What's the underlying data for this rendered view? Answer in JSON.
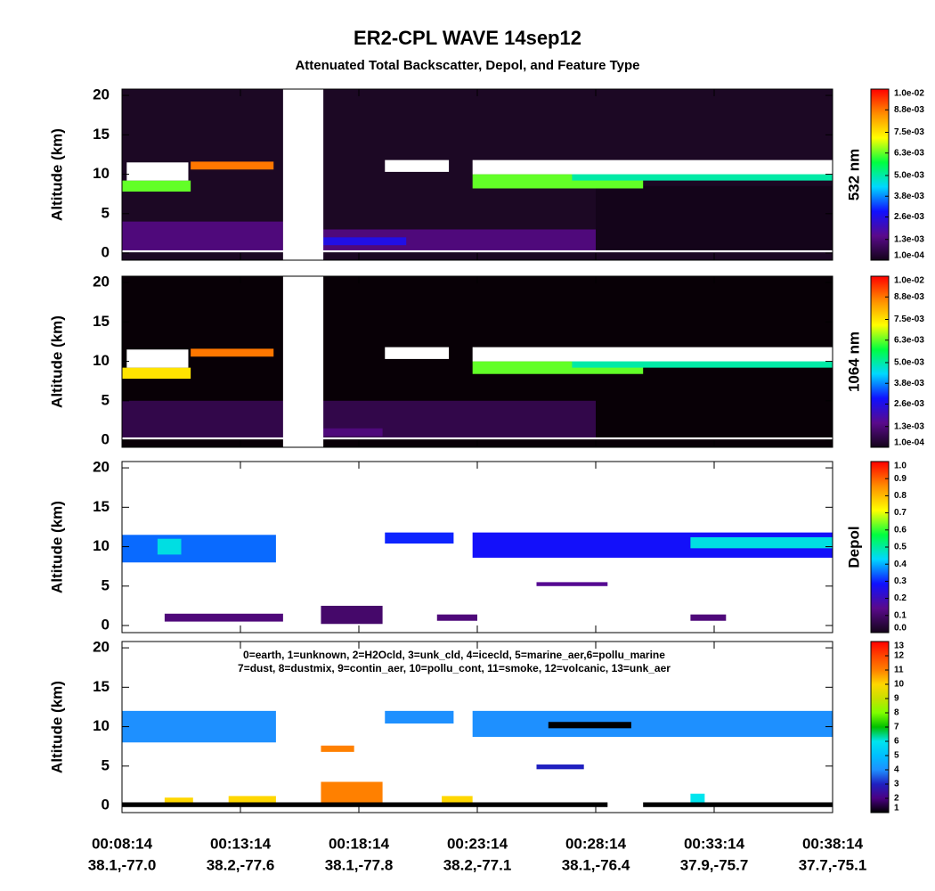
{
  "chart_data": {
    "type": "heatmap",
    "title": "ER2-CPL WAVE 14sep12",
    "subtitle": "Attenuated Total Backscatter, Depol, and Feature Type",
    "xlim": [
      0,
      30
    ],
    "xticks": [
      {
        "value": 0,
        "label": "00:08:14"
      },
      {
        "value": 5,
        "label": "00:13:14"
      },
      {
        "value": 10,
        "label": "00:18:14"
      },
      {
        "value": 15,
        "label": "00:23:14"
      },
      {
        "value": 20,
        "label": "00:28:14"
      },
      {
        "value": 25,
        "label": "00:33:14"
      },
      {
        "value": 30,
        "label": "00:38:14"
      }
    ],
    "xtick_locations": [
      "38.1,-77.0",
      "38.2,-77.6",
      "38.1,-77.8",
      "38.2,-77.1",
      "38.1,-76.4",
      "37.9,-75.7",
      "37.7,-75.1"
    ],
    "ylabel": "Altitude (km)",
    "ylim": [
      -0.9,
      20.8
    ],
    "yticks": [
      0,
      5,
      10,
      15,
      20
    ],
    "panels": [
      {
        "colorbar_label": "532 nm",
        "background": "#1c0824",
        "gap": [
          6.8,
          8.5
        ],
        "clim": [
          0.0001,
          0.01
        ],
        "cticks": [
          {
            "value": 0.0001,
            "label": "1.0e-04"
          },
          {
            "value": 0.0013,
            "label": "1.3e-03"
          },
          {
            "value": 0.0026,
            "label": "2.6e-03"
          },
          {
            "value": 0.0038,
            "label": "3.8e-03"
          },
          {
            "value": 0.005,
            "label": "5.0e-03"
          },
          {
            "value": 0.0063,
            "label": "6.3e-03"
          },
          {
            "value": 0.0075,
            "label": "7.5e-03"
          },
          {
            "value": 0.0088,
            "label": "8.8e-03"
          },
          {
            "value": 0.01,
            "label": "1.0e-02"
          }
        ],
        "colors": [
          "#14041a",
          "#5a0a8c",
          "#1010ff",
          "#00d8ff",
          "#00ff40",
          "#ffff00",
          "#ff8c00",
          "#ff0000"
        ],
        "over_color": "#ffffff",
        "under_color": "#000000",
        "features": [
          {
            "x0": 0,
            "x1": 6.8,
            "bottom": 0.3,
            "top": 4,
            "value": 0.0013
          },
          {
            "x0": 8.5,
            "x1": 20,
            "bottom": 0.3,
            "top": 3,
            "value": 0.0013
          },
          {
            "x0": 8.5,
            "x1": 12,
            "bottom": 1,
            "top": 2,
            "value": 0.0026
          },
          {
            "x0": 20,
            "x1": 30,
            "bottom": 0.3,
            "top": 8.5,
            "value": 0.0001
          },
          {
            "x0": 0,
            "x1": 2.9,
            "bottom": 7.8,
            "top": 9.2,
            "value": 0.0063
          },
          {
            "x0": 0.2,
            "x1": 2.8,
            "bottom": 9.2,
            "top": 11.5,
            "value": 0.012
          },
          {
            "x0": 2.9,
            "x1": 6.4,
            "bottom": 10.6,
            "top": 11.6,
            "value": 0.0088
          },
          {
            "x0": 11.1,
            "x1": 13.8,
            "bottom": 10.3,
            "top": 11.8,
            "value": 0.012
          },
          {
            "x0": 14.8,
            "x1": 22,
            "bottom": 8.2,
            "top": 10,
            "value": 0.0063
          },
          {
            "x0": 19,
            "x1": 30,
            "bottom": 9.2,
            "top": 10.2,
            "value": 0.005
          },
          {
            "x0": 14.8,
            "x1": 30,
            "bottom": 10,
            "top": 11.8,
            "value": 0.012
          },
          {
            "x0": 0,
            "x1": 30,
            "bottom": 0.1,
            "top": 0.35,
            "value": 0.012
          }
        ]
      },
      {
        "colorbar_label": "1064 nm",
        "background": "#080006",
        "gap": [
          6.8,
          8.5
        ],
        "clim": [
          0.0001,
          0.01
        ],
        "cticks": [
          {
            "value": 0.0001,
            "label": "1.0e-04"
          },
          {
            "value": 0.0013,
            "label": "1.3e-03"
          },
          {
            "value": 0.0026,
            "label": "2.6e-03"
          },
          {
            "value": 0.0038,
            "label": "3.8e-03"
          },
          {
            "value": 0.005,
            "label": "5.0e-03"
          },
          {
            "value": 0.0063,
            "label": "6.3e-03"
          },
          {
            "value": 0.0075,
            "label": "7.5e-03"
          },
          {
            "value": 0.0088,
            "label": "8.8e-03"
          },
          {
            "value": 0.01,
            "label": "1.0e-02"
          }
        ],
        "colors": [
          "#14041a",
          "#5a0a8c",
          "#1010ff",
          "#00d8ff",
          "#00ff40",
          "#ffff00",
          "#ff8c00",
          "#ff0000"
        ],
        "over_color": "#ffffff",
        "under_color": "#000000",
        "features": [
          {
            "x0": 0,
            "x1": 20,
            "bottom": 0.3,
            "top": 5,
            "value": 0.0007
          },
          {
            "x0": 8.5,
            "x1": 11,
            "bottom": 0.5,
            "top": 1.5,
            "value": 0.0013
          },
          {
            "x0": 0,
            "x1": 2.9,
            "bottom": 7.8,
            "top": 9.2,
            "value": 0.0075
          },
          {
            "x0": 0.2,
            "x1": 2.8,
            "bottom": 9.2,
            "top": 11.5,
            "value": 0.012
          },
          {
            "x0": 2.9,
            "x1": 6.4,
            "bottom": 10.6,
            "top": 11.6,
            "value": 0.0088
          },
          {
            "x0": 11.1,
            "x1": 13.8,
            "bottom": 10.3,
            "top": 11.8,
            "value": 0.012
          },
          {
            "x0": 14.8,
            "x1": 22,
            "bottom": 8.4,
            "top": 10,
            "value": 0.0063
          },
          {
            "x0": 19,
            "x1": 30,
            "bottom": 9.2,
            "top": 10.2,
            "value": 0.005
          },
          {
            "x0": 14.8,
            "x1": 30,
            "bottom": 10,
            "top": 11.8,
            "value": 0.012
          },
          {
            "x0": 0,
            "x1": 30,
            "bottom": 0.1,
            "top": 0.35,
            "value": 0.012
          }
        ]
      },
      {
        "colorbar_label": "Depol",
        "background": "#ffffff",
        "clim": [
          0,
          1
        ],
        "cticks": [
          {
            "value": 0,
            "label": "0.0"
          },
          0.1,
          0.2,
          0.3,
          0.4,
          0.5,
          0.6,
          0.7,
          0.8,
          0.9,
          {
            "value": 1,
            "label": "1.0"
          }
        ],
        "colors": [
          "#14041a",
          "#5a0a8c",
          "#1010ff",
          "#00d8ff",
          "#00ff40",
          "#ffff00",
          "#ff8c00",
          "#ff0000"
        ],
        "over_color": "#ffffff",
        "under_color": "#000000",
        "features": [
          {
            "x0": 0,
            "x1": 6.5,
            "bottom": 8,
            "top": 11.5,
            "value": 0.35
          },
          {
            "x0": 1.5,
            "x1": 2.5,
            "bottom": 9,
            "top": 11,
            "value": 0.45
          },
          {
            "x0": 11.1,
            "x1": 14,
            "bottom": 10.4,
            "top": 11.8,
            "value": 0.3
          },
          {
            "x0": 14.8,
            "x1": 30,
            "bottom": 8.6,
            "top": 11.8,
            "value": 0.28
          },
          {
            "x0": 24,
            "x1": 30,
            "bottom": 9.8,
            "top": 11.2,
            "value": 0.45
          },
          {
            "x0": 1.8,
            "x1": 6.8,
            "bottom": 0.5,
            "top": 1.5,
            "value": 0.12
          },
          {
            "x0": 8.4,
            "x1": 11,
            "bottom": 0.2,
            "top": 2.5,
            "value": 0.1
          },
          {
            "x0": 13.3,
            "x1": 15,
            "bottom": 0.6,
            "top": 1.4,
            "value": 0.12
          },
          {
            "x0": 17.5,
            "x1": 20.5,
            "bottom": 5,
            "top": 5.5,
            "value": 0.15
          },
          {
            "x0": 24,
            "x1": 25.5,
            "bottom": 0.6,
            "top": 1.4,
            "value": 0.12
          }
        ]
      },
      {
        "background": "#ffffff",
        "annotation": [
          "0=earth, 1=unknown, 2=H2Ocld, 3=unk_cld, 4=icecld, 5=marine_aer,6=pollu_marine",
          "7=dust, 8=dustmix, 9=contin_aer, 10=pollu_cont, 11=smoke, 12=volcanic, 13=unk_aer"
        ],
        "clim": [
          1,
          13
        ],
        "cticks": [
          1,
          2,
          3,
          4,
          5,
          6,
          7,
          8,
          9,
          10,
          11,
          12,
          13
        ],
        "colors": [
          "#000000",
          "#4b0082",
          "#2020c0",
          "#1e90ff",
          "#00bfff",
          "#00e5ee",
          "#00c000",
          "#7fff00",
          "#c8e000",
          "#ffd700",
          "#ff8000",
          "#ff4500",
          "#ff0000"
        ],
        "over_color": "#ffffff",
        "under_color": "#000000",
        "features": [
          {
            "x0": 0,
            "x1": 6.5,
            "bottom": 8,
            "top": 12,
            "value": 4
          },
          {
            "x0": 11.1,
            "x1": 14,
            "bottom": 10.4,
            "top": 12,
            "value": 4
          },
          {
            "x0": 14.8,
            "x1": 30,
            "bottom": 8.7,
            "top": 12,
            "value": 4
          },
          {
            "x0": 18,
            "x1": 21.5,
            "bottom": 9.8,
            "top": 10.6,
            "value": 1
          },
          {
            "x0": 8.4,
            "x1": 11,
            "bottom": 0,
            "top": 3,
            "value": 11
          },
          {
            "x0": 8.4,
            "x1": 9.8,
            "bottom": 6.8,
            "top": 7.6,
            "value": 11
          },
          {
            "x0": 1.8,
            "x1": 3,
            "bottom": 0,
            "top": 1,
            "value": 10
          },
          {
            "x0": 4.5,
            "x1": 6.5,
            "bottom": 0,
            "top": 1.2,
            "value": 10
          },
          {
            "x0": 13.5,
            "x1": 14.8,
            "bottom": 0,
            "top": 1.2,
            "value": 10
          },
          {
            "x0": 17.5,
            "x1": 19.5,
            "bottom": 4.6,
            "top": 5.2,
            "value": 3
          },
          {
            "x0": 24,
            "x1": 24.6,
            "bottom": 0.3,
            "top": 1.5,
            "value": 6
          },
          {
            "x0": 0,
            "x1": 20.5,
            "bottom": -0.2,
            "top": 0.4,
            "value": 0
          },
          {
            "x0": 22,
            "x1": 30,
            "bottom": -0.2,
            "top": 0.4,
            "value": 0
          }
        ]
      }
    ]
  }
}
